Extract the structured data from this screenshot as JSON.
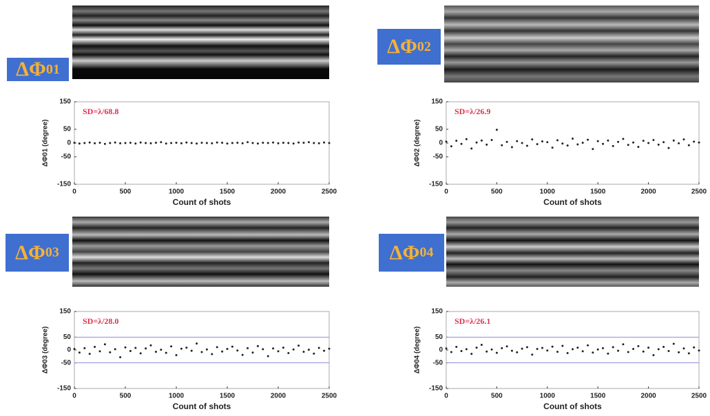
{
  "chart_data": [
    {
      "type": "scatter",
      "label": "ΔΦ",
      "label_sub": "01",
      "annotation": "SD=λ/68.8",
      "ylabel": "ΔΦ01 (degree)",
      "xlabel": "Count of shots",
      "xlim": [
        0,
        2500
      ],
      "xticks": [
        0,
        500,
        1000,
        1500,
        2000,
        2500
      ],
      "ylim": [
        -150,
        150
      ],
      "yticks": [
        -150,
        -50,
        0,
        50,
        150
      ],
      "color": "#222222",
      "annotation_color": "#e0304a",
      "reference_lines": [],
      "x": [
        0,
        50,
        100,
        150,
        200,
        250,
        300,
        350,
        400,
        450,
        500,
        550,
        600,
        650,
        700,
        750,
        800,
        850,
        900,
        950,
        1000,
        1050,
        1100,
        1150,
        1200,
        1250,
        1300,
        1350,
        1400,
        1450,
        1500,
        1550,
        1600,
        1650,
        1700,
        1750,
        1800,
        1850,
        1900,
        1950,
        2000,
        2050,
        2100,
        2150,
        2200,
        2250,
        2300,
        2350,
        2400,
        2450,
        2500
      ],
      "values": [
        1,
        -2,
        0,
        2,
        -1,
        1,
        -3,
        0,
        2,
        -1,
        0,
        1,
        -2,
        2,
        0,
        -1,
        1,
        3,
        -2,
        0,
        1,
        -1,
        2,
        0,
        -2,
        1,
        0,
        -1,
        2,
        1,
        -2,
        0,
        1,
        -1,
        3,
        0,
        -2,
        1,
        0,
        2,
        -1,
        1,
        0,
        -2,
        2,
        1,
        3,
        0,
        -1,
        2,
        0
      ]
    },
    {
      "type": "scatter",
      "label": "ΔΦ",
      "label_sub": "02",
      "annotation": "SD=λ/26.9",
      "ylabel": "ΔΦ02 (degree)",
      "xlabel": "Count of shots",
      "xlim": [
        0,
        2500
      ],
      "xticks": [
        0,
        500,
        1000,
        1500,
        2000,
        2500
      ],
      "ylim": [
        -150,
        150
      ],
      "yticks": [
        -150,
        -50,
        0,
        50,
        150
      ],
      "color": "#222222",
      "annotation_color": "#e0304a",
      "reference_lines": [],
      "x": [
        0,
        50,
        100,
        150,
        200,
        250,
        300,
        350,
        400,
        450,
        500,
        550,
        600,
        650,
        700,
        750,
        800,
        850,
        900,
        950,
        1000,
        1050,
        1100,
        1150,
        1200,
        1250,
        1300,
        1350,
        1400,
        1450,
        1500,
        1550,
        1600,
        1650,
        1700,
        1750,
        1800,
        1850,
        1900,
        1950,
        2000,
        2050,
        2100,
        2150,
        2200,
        2250,
        2300,
        2350,
        2400,
        2450,
        2500
      ],
      "values": [
        5,
        -12,
        8,
        -3,
        14,
        -20,
        2,
        9,
        -6,
        11,
        48,
        -8,
        4,
        -15,
        7,
        0,
        -10,
        13,
        -4,
        6,
        3,
        -17,
        10,
        -2,
        -9,
        16,
        -5,
        1,
        12,
        -22,
        7,
        -3,
        9,
        -11,
        4,
        15,
        -7,
        2,
        -14,
        8,
        0,
        11,
        -6,
        3,
        -18,
        9,
        -1,
        13,
        -8,
        5,
        2
      ]
    },
    {
      "type": "scatter",
      "label": "ΔΦ",
      "label_sub": "03",
      "annotation": "SD=λ/28.0",
      "ylabel": "ΔΦ03 (degree)",
      "xlabel": "Count of shots",
      "xlim": [
        0,
        2500
      ],
      "xticks": [
        0,
        500,
        1000,
        1500,
        2000,
        2500
      ],
      "ylim": [
        -150,
        150
      ],
      "yticks": [
        -150,
        -50,
        0,
        50,
        150
      ],
      "color": "#222222",
      "annotation_color": "#e0304a",
      "reference_lines": [
        50,
        -50
      ],
      "reference_color": "#8c8cdc",
      "x": [
        0,
        50,
        100,
        150,
        200,
        250,
        300,
        350,
        400,
        450,
        500,
        550,
        600,
        650,
        700,
        750,
        800,
        850,
        900,
        950,
        1000,
        1050,
        1100,
        1150,
        1200,
        1250,
        1300,
        1350,
        1400,
        1450,
        1500,
        1550,
        1600,
        1650,
        1700,
        1750,
        1800,
        1850,
        1900,
        1950,
        2000,
        2050,
        2100,
        2150,
        2200,
        2250,
        2300,
        2350,
        2400,
        2450,
        2500
      ],
      "values": [
        4,
        -10,
        7,
        -15,
        12,
        -5,
        22,
        -9,
        3,
        -28,
        10,
        -4,
        8,
        -13,
        6,
        18,
        -7,
        1,
        -11,
        14,
        -20,
        5,
        9,
        -3,
        25,
        -8,
        2,
        -16,
        11,
        -6,
        4,
        13,
        -2,
        -19,
        7,
        -10,
        15,
        3,
        -24,
        6,
        -5,
        9,
        -12,
        2,
        17,
        -7,
        1,
        -14,
        8,
        -3,
        5
      ]
    },
    {
      "type": "scatter",
      "label": "ΔΦ",
      "label_sub": "04",
      "annotation": "SD=λ/26.1",
      "ylabel": "ΔΦ04 (degree)",
      "xlabel": "Count of shots",
      "xlim": [
        0,
        2500
      ],
      "xticks": [
        0,
        500,
        1000,
        1500,
        2000,
        2500
      ],
      "ylim": [
        -150,
        150
      ],
      "yticks": [
        -150,
        -50,
        0,
        50,
        150
      ],
      "color": "#222222",
      "annotation_color": "#e0304a",
      "reference_lines": [
        50,
        -50
      ],
      "reference_color": "#8c8cdc",
      "x": [
        0,
        50,
        100,
        150,
        200,
        250,
        300,
        350,
        400,
        450,
        500,
        550,
        600,
        650,
        700,
        750,
        800,
        850,
        900,
        950,
        1000,
        1050,
        1100,
        1150,
        1200,
        1250,
        1300,
        1350,
        1400,
        1450,
        1500,
        1550,
        1600,
        1650,
        1700,
        1750,
        1800,
        1850,
        1900,
        1950,
        2000,
        2050,
        2100,
        2150,
        2200,
        2250,
        2300,
        2350,
        2400,
        2450,
        2500
      ],
      "values": [
        6,
        -8,
        12,
        -4,
        3,
        -15,
        9,
        20,
        -6,
        2,
        -11,
        7,
        14,
        -3,
        -9,
        5,
        11,
        -18,
        4,
        8,
        -2,
        13,
        -7,
        16,
        -12,
        3,
        9,
        -5,
        18,
        -10,
        2,
        7,
        -14,
        11,
        -3,
        22,
        -8,
        4,
        15,
        -6,
        9,
        -20,
        3,
        12,
        -4,
        24,
        -9,
        6,
        -13,
        10,
        -2
      ]
    }
  ]
}
